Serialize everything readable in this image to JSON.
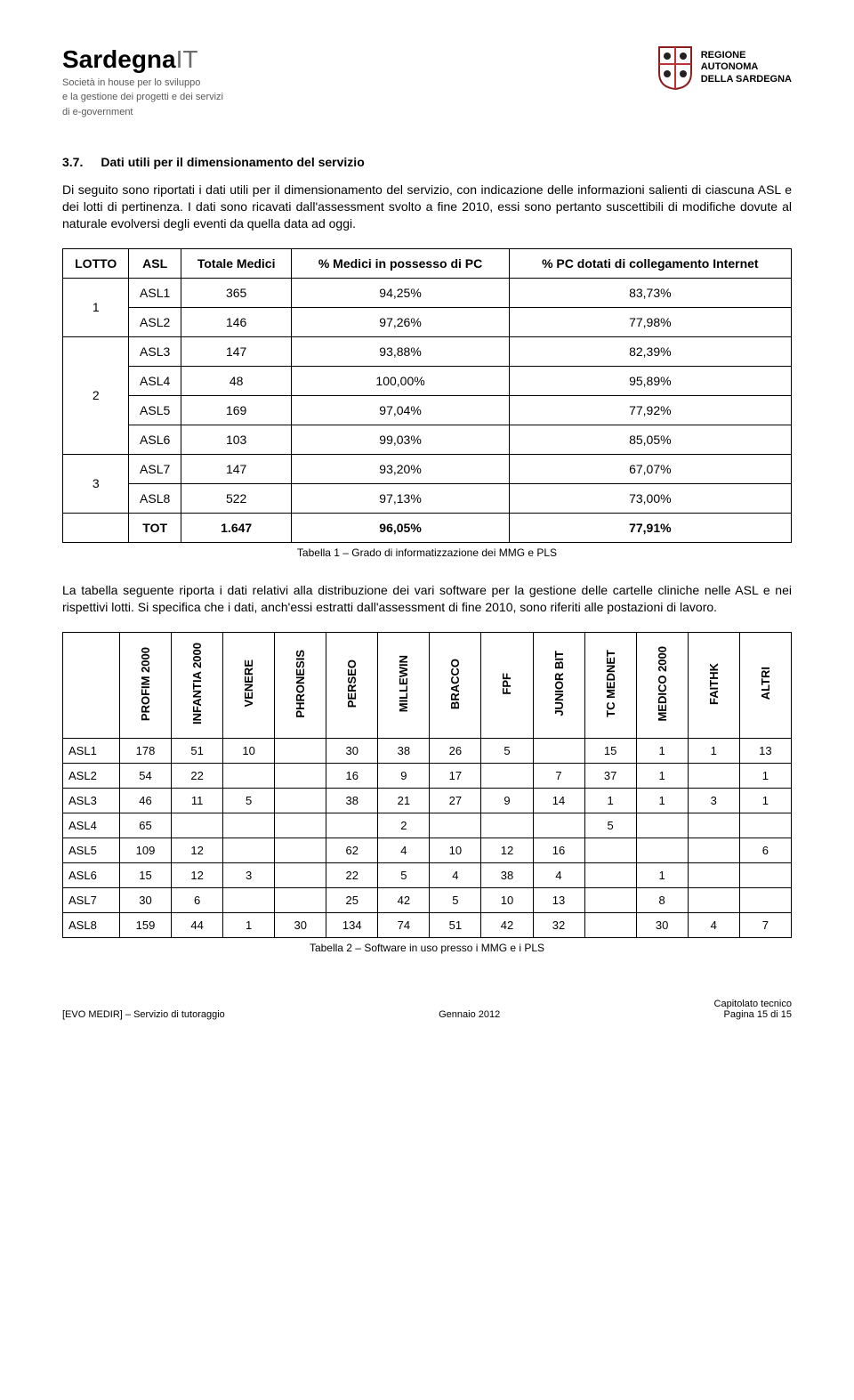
{
  "header": {
    "brand_main": "Sardegna",
    "brand_suffix": "IT",
    "brand_sub1": "Società in house per lo sviluppo",
    "brand_sub2": "e la gestione dei progetti e dei servizi",
    "brand_sub3": "di e-government",
    "region_line1": "REGIONE",
    "region_line2": "AUTONOMA",
    "region_line3": "DELLA SARDEGNA"
  },
  "section": {
    "num": "3.7.",
    "title": "Dati utili per il dimensionamento del servizio"
  },
  "para1": "Di seguito sono riportati i dati utili per il dimensionamento del servizio, con indicazione delle informazioni salienti di ciascuna ASL e dei lotti di pertinenza. I dati sono ricavati dall'assessment svolto a fine 2010, essi sono pertanto suscettibili di modifiche dovute al naturale evolversi degli eventi da quella data ad oggi.",
  "table1": {
    "headers": {
      "lotto": "LOTTO",
      "asl": "ASL",
      "totale": "Totale Medici",
      "perc_pc": "% Medici in possesso di PC",
      "perc_net": "% PC dotati di collegamento Internet"
    },
    "groups": [
      {
        "lotto": "1",
        "rows": [
          {
            "asl": "ASL1",
            "tot": "365",
            "pc": "94,25%",
            "net": "83,73%"
          },
          {
            "asl": "ASL2",
            "tot": "146",
            "pc": "97,26%",
            "net": "77,98%"
          }
        ]
      },
      {
        "lotto": "2",
        "rows": [
          {
            "asl": "ASL3",
            "tot": "147",
            "pc": "93,88%",
            "net": "82,39%"
          },
          {
            "asl": "ASL4",
            "tot": "48",
            "pc": "100,00%",
            "net": "95,89%"
          },
          {
            "asl": "ASL5",
            "tot": "169",
            "pc": "97,04%",
            "net": "77,92%"
          },
          {
            "asl": "ASL6",
            "tot": "103",
            "pc": "99,03%",
            "net": "85,05%"
          }
        ]
      },
      {
        "lotto": "3",
        "rows": [
          {
            "asl": "ASL7",
            "tot": "147",
            "pc": "93,20%",
            "net": "67,07%"
          },
          {
            "asl": "ASL8",
            "tot": "522",
            "pc": "97,13%",
            "net": "73,00%"
          }
        ]
      }
    ],
    "total": {
      "label": "TOT",
      "tot": "1.647",
      "pc": "96,05%",
      "net": "77,91%"
    },
    "caption": "Tabella 1 – Grado di informatizzazione dei MMG e PLS"
  },
  "para2": "La tabella seguente riporta i dati relativi alla distribuzione dei vari software per la gestione delle cartelle cliniche nelle ASL e nei rispettivi lotti. Si specifica che i dati, anch'essi estratti dall'assessment di fine 2010, sono riferiti alle postazioni di lavoro.",
  "table2": {
    "columns": [
      "PROFIM 2000",
      "INFANTIA 2000",
      "VENERE",
      "PHRONESIS",
      "PERSEO",
      "MILLEWIN",
      "BRACCO",
      "FPF",
      "JUNIOR BIT",
      "TC MEDNET",
      "MEDICO 2000",
      "FAITHK",
      "ALTRI"
    ],
    "rows": [
      {
        "asl": "ASL1",
        "v": [
          "178",
          "51",
          "10",
          "",
          "30",
          "38",
          "26",
          "5",
          "",
          "15",
          "1",
          "1",
          "13"
        ]
      },
      {
        "asl": "ASL2",
        "v": [
          "54",
          "22",
          "",
          "",
          "16",
          "9",
          "17",
          "",
          "7",
          "37",
          "1",
          "",
          "1"
        ]
      },
      {
        "asl": "ASL3",
        "v": [
          "46",
          "11",
          "5",
          "",
          "38",
          "21",
          "27",
          "9",
          "14",
          "1",
          "1",
          "3",
          "1"
        ]
      },
      {
        "asl": "ASL4",
        "v": [
          "65",
          "",
          "",
          "",
          "",
          "2",
          "",
          "",
          "",
          "5",
          "",
          "",
          ""
        ]
      },
      {
        "asl": "ASL5",
        "v": [
          "109",
          "12",
          "",
          "",
          "62",
          "4",
          "10",
          "12",
          "16",
          "",
          "",
          "",
          "6"
        ]
      },
      {
        "asl": "ASL6",
        "v": [
          "15",
          "12",
          "3",
          "",
          "22",
          "5",
          "4",
          "38",
          "4",
          "",
          "1",
          "",
          ""
        ]
      },
      {
        "asl": "ASL7",
        "v": [
          "30",
          "6",
          "",
          "",
          "25",
          "42",
          "5",
          "10",
          "13",
          "",
          "8",
          "",
          ""
        ]
      },
      {
        "asl": "ASL8",
        "v": [
          "159",
          "44",
          "1",
          "30",
          "134",
          "74",
          "51",
          "42",
          "32",
          "",
          "30",
          "4",
          "7"
        ]
      }
    ],
    "caption": "Tabella 2 – Software in uso presso i MMG e i PLS"
  },
  "footer": {
    "left": "[EVO MEDIR] – Servizio di tutoraggio",
    "mid": "Gennaio 2012",
    "right_label": "Capitolato tecnico",
    "right_page": "Pagina 15 di 15"
  }
}
